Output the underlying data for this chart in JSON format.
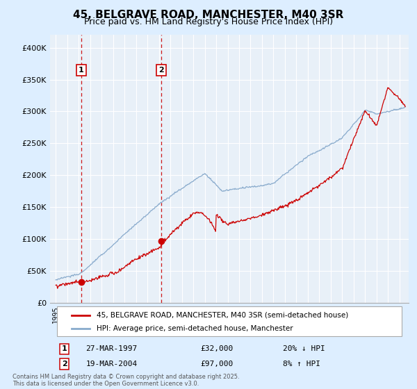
{
  "title": "45, BELGRAVE ROAD, MANCHESTER, M40 3SR",
  "subtitle": "Price paid vs. HM Land Registry's House Price Index (HPI)",
  "legend_line1": "45, BELGRAVE ROAD, MANCHESTER, M40 3SR (semi-detached house)",
  "legend_line2": "HPI: Average price, semi-detached house, Manchester",
  "footnote": "Contains HM Land Registry data © Crown copyright and database right 2025.\nThis data is licensed under the Open Government Licence v3.0.",
  "sale1": {
    "label": "1",
    "date_str": "27-MAR-1997",
    "price": 32000,
    "pct": "20%",
    "dir": "↓",
    "x": 1997.23
  },
  "sale2": {
    "label": "2",
    "date_str": "19-MAR-2004",
    "price": 97000,
    "pct": "8%",
    "dir": "↑",
    "x": 2004.21
  },
  "ylim": [
    0,
    420000
  ],
  "yticks": [
    0,
    50000,
    100000,
    150000,
    200000,
    250000,
    300000,
    350000,
    400000
  ],
  "ytick_labels": [
    "£0",
    "£50K",
    "£100K",
    "£150K",
    "£200K",
    "£250K",
    "£300K",
    "£350K",
    "£400K"
  ],
  "xlim": [
    1994.5,
    2025.8
  ],
  "line_color_red": "#cc0000",
  "line_color_blue": "#88aacc",
  "bg_color": "#ddeeff",
  "plot_bg": "#e8f0f8",
  "grid_color": "#ffffff",
  "vline_color": "#cc0000",
  "marker_color": "#cc0000",
  "box_color": "#cc0000",
  "title_fontsize": 11,
  "subtitle_fontsize": 9
}
